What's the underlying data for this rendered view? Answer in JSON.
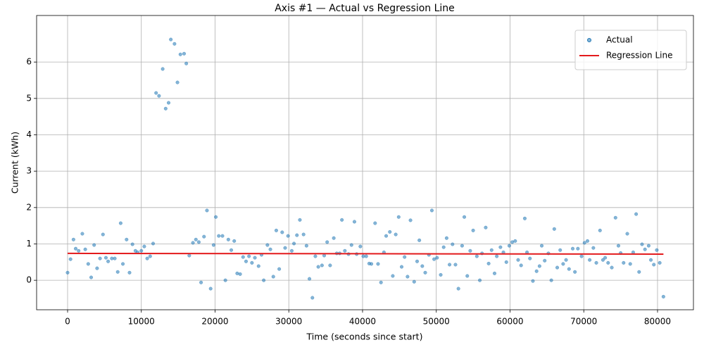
{
  "chart_data": {
    "type": "scatter",
    "title": "Axis #1 — Actual vs Regression Line",
    "x_label": "Time (seconds since start)",
    "y_label": "Current (kWh)",
    "xlim": [
      -4200,
      84870
    ],
    "ylim": [
      -0.81,
      7.28
    ],
    "xticks": [
      0,
      10000,
      20000,
      30000,
      40000,
      50000,
      60000,
      70000,
      80000
    ],
    "yticks": [
      0,
      1,
      2,
      3,
      4,
      5,
      6
    ],
    "grid": true,
    "legend": "upper right",
    "series": [
      {
        "name": "Actual",
        "type": "scatter",
        "color": "#1f77b4",
        "x": [
          0,
          400,
          800,
          1100,
          1500,
          2000,
          2400,
          2800,
          3200,
          3600,
          4000,
          4400,
          4800,
          5200,
          5500,
          6000,
          6400,
          6800,
          7200,
          7500,
          8000,
          8400,
          8800,
          9200,
          9500,
          10000,
          10400,
          10800,
          11200,
          11600,
          12000,
          12400,
          12900,
          13300,
          13700,
          14000,
          14500,
          14900,
          15300,
          15800,
          16100,
          16500,
          17000,
          17400,
          17800,
          18100,
          18500,
          18900,
          19400,
          19800,
          20100,
          20500,
          21000,
          21400,
          21800,
          22200,
          22600,
          23000,
          23400,
          23800,
          24200,
          24600,
          25000,
          25400,
          25900,
          26300,
          26600,
          27100,
          27500,
          27900,
          28300,
          28700,
          29100,
          29500,
          29900,
          30400,
          30700,
          31100,
          31500,
          32000,
          32400,
          32800,
          33200,
          33600,
          34000,
          34500,
          34800,
          35200,
          35600,
          36100,
          36500,
          36900,
          37200,
          37600,
          38100,
          38500,
          38900,
          39200,
          39700,
          40100,
          40500,
          40900,
          41200,
          41700,
          42100,
          42500,
          42900,
          43200,
          43700,
          44100,
          44500,
          44900,
          45300,
          45700,
          46100,
          46500,
          47000,
          47400,
          47700,
          48100,
          48500,
          49000,
          49400,
          49700,
          50100,
          50600,
          51000,
          51400,
          51800,
          52200,
          52600,
          53000,
          53500,
          53800,
          54200,
          54600,
          55000,
          55500,
          55900,
          56200,
          56700,
          57100,
          57500,
          57900,
          58200,
          58700,
          59100,
          59500,
          59900,
          60300,
          60700,
          61100,
          61500,
          62000,
          62300,
          62700,
          63100,
          63600,
          64000,
          64300,
          64700,
          65200,
          65600,
          66000,
          66400,
          66800,
          67200,
          67600,
          68000,
          68500,
          68800,
          69200,
          69700,
          70100,
          70500,
          70800,
          71300,
          71700,
          72200,
          72600,
          72900,
          73300,
          73800,
          74300,
          74700,
          75000,
          75400,
          75900,
          76300,
          76700,
          77100,
          77500,
          77900,
          78300,
          78800,
          79100,
          79500,
          79900,
          80300,
          80800
        ],
        "values": [
          0.21,
          0.58,
          1.12,
          0.87,
          0.81,
          1.28,
          0.85,
          0.45,
          0.08,
          0.97,
          0.33,
          0.6,
          1.26,
          0.62,
          0.52,
          0.6,
          0.6,
          0.23,
          1.57,
          0.45,
          1.12,
          0.21,
          0.99,
          0.81,
          0.77,
          0.81,
          0.93,
          0.6,
          0.66,
          1.01,
          5.15,
          5.07,
          5.81,
          4.72,
          4.88,
          6.62,
          6.5,
          5.44,
          6.21,
          6.23,
          5.96,
          0.68,
          1.03,
          1.12,
          1.05,
          -0.06,
          1.2,
          1.92,
          -0.23,
          0.97,
          1.74,
          1.22,
          1.22,
          0.0,
          1.12,
          0.83,
          1.08,
          0.19,
          0.17,
          0.64,
          0.52,
          0.66,
          0.48,
          0.62,
          0.39,
          0.7,
          0.0,
          0.97,
          0.85,
          0.1,
          1.37,
          0.31,
          1.32,
          0.89,
          1.22,
          0.81,
          1.01,
          1.24,
          1.66,
          1.26,
          0.95,
          0.04,
          -0.48,
          0.66,
          0.37,
          0.41,
          0.68,
          1.05,
          0.41,
          1.16,
          0.74,
          0.74,
          1.66,
          0.81,
          0.72,
          0.97,
          1.61,
          0.72,
          0.93,
          0.66,
          0.66,
          0.46,
          0.45,
          1.57,
          0.45,
          -0.06,
          0.77,
          1.22,
          1.33,
          0.12,
          1.26,
          1.74,
          0.37,
          0.64,
          0.1,
          1.65,
          -0.04,
          0.52,
          1.1,
          0.39,
          0.21,
          0.7,
          1.92,
          0.58,
          0.62,
          0.15,
          0.91,
          1.16,
          0.43,
          0.99,
          0.43,
          -0.23,
          0.95,
          1.74,
          0.12,
          0.81,
          1.37,
          0.66,
          0.0,
          0.74,
          1.45,
          0.46,
          0.83,
          0.19,
          0.66,
          0.91,
          0.77,
          0.5,
          0.95,
          1.05,
          1.08,
          0.56,
          0.41,
          1.7,
          0.77,
          0.6,
          -0.02,
          0.25,
          0.39,
          0.95,
          0.54,
          0.74,
          0.0,
          1.41,
          0.35,
          0.83,
          0.45,
          0.56,
          0.31,
          0.87,
          0.23,
          0.87,
          0.66,
          1.03,
          1.08,
          0.56,
          0.89,
          0.48,
          1.37,
          0.56,
          0.62,
          0.48,
          0.35,
          1.72,
          0.95,
          0.75,
          0.48,
          1.28,
          0.45,
          0.77,
          1.82,
          0.23,
          0.99,
          0.85,
          0.95,
          0.56,
          0.43,
          0.83,
          0.48,
          -0.45
        ]
      },
      {
        "name": "Regression Line",
        "type": "line",
        "color": "#e31a1c",
        "x": [
          0,
          80800
        ],
        "values": [
          0.74,
          0.72
        ]
      }
    ]
  }
}
